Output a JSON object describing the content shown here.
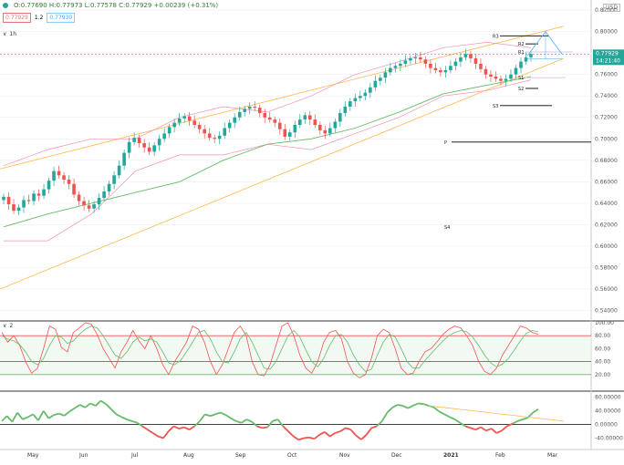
{
  "header": {
    "ohlc": "O:0.77690  H:0.77973  L:0.77578  C:0.77929  +0.00239 (+0.31%)",
    "price_box_red": "0.77929",
    "price_box_mid": "1.2",
    "price_box_blue": "0.77930",
    "interval": "1h",
    "currency": "USD",
    "osc_label": "2",
    "price_tag": "0.77929",
    "time_tag": "14:21:40"
  },
  "colors": {
    "up": "#26a69a",
    "down": "#ef5350",
    "channel": "#ffb74d",
    "bollinger": "#f48fb1",
    "ma": "#66bb6a",
    "pivot": "#000000",
    "pivot_hl": "#e1bee7",
    "stoch_k": "#ef5350",
    "stoch_d": "#66bb6a",
    "macd_up": "#66bb6a",
    "macd_down": "#ef5350",
    "projection": "#64b5f6"
  },
  "chart_data": [
    {
      "type": "line",
      "title": "",
      "subtype": "candlestick",
      "series": [
        {
          "name": "close",
          "values": [
            0.646,
            0.639,
            0.633,
            0.636,
            0.643,
            0.642,
            0.649,
            0.647,
            0.653,
            0.661,
            0.67,
            0.666,
            0.662,
            0.658,
            0.648,
            0.642,
            0.638,
            0.635,
            0.639,
            0.645,
            0.651,
            0.658,
            0.666,
            0.675,
            0.687,
            0.697,
            0.701,
            0.696,
            0.692,
            0.688,
            0.694,
            0.7,
            0.705,
            0.711,
            0.715,
            0.719,
            0.721,
            0.717,
            0.713,
            0.709,
            0.705,
            0.701,
            0.7,
            0.703,
            0.71,
            0.715,
            0.72,
            0.725,
            0.728,
            0.73,
            0.729,
            0.724,
            0.72,
            0.718,
            0.715,
            0.709,
            0.702,
            0.706,
            0.713,
            0.718,
            0.722,
            0.718,
            0.713,
            0.708,
            0.705,
            0.71,
            0.716,
            0.724,
            0.73,
            0.735,
            0.738,
            0.74,
            0.743,
            0.748,
            0.754,
            0.757,
            0.762,
            0.766,
            0.768,
            0.77,
            0.773,
            0.775,
            0.776,
            0.774,
            0.77,
            0.766,
            0.764,
            0.762,
            0.764,
            0.768,
            0.772,
            0.776,
            0.779,
            0.775,
            0.77,
            0.765,
            0.76,
            0.758,
            0.756,
            0.754,
            0.756,
            0.76,
            0.766,
            0.772,
            0.776,
            0.779
          ]
        },
        {
          "name": "bb_upper",
          "values": [
            0.675,
            0.69,
            0.7,
            0.7,
            0.72,
            0.73,
            0.725,
            0.74,
            0.76,
            0.772,
            0.785,
            0.79,
            0.785
          ]
        },
        {
          "name": "bb_lower",
          "values": [
            0.605,
            0.605,
            0.63,
            0.67,
            0.685,
            0.685,
            0.695,
            0.69,
            0.705,
            0.72,
            0.74,
            0.745,
            0.755
          ]
        },
        {
          "name": "ma_slow",
          "values": [
            0.618,
            0.63,
            0.64,
            0.65,
            0.66,
            0.68,
            0.695,
            0.7,
            0.71,
            0.725,
            0.742,
            0.75,
            0.758
          ]
        }
      ],
      "channel": {
        "upper_start": 0.672,
        "upper_end": 0.805,
        "lower_start": 0.56,
        "lower_end": 0.775
      },
      "pivots": [
        {
          "label": "R3",
          "value": 0.796
        },
        {
          "label": "R2",
          "value": 0.7885
        },
        {
          "label": "R1",
          "value": 0.781
        },
        {
          "label": "S1",
          "value": 0.757
        },
        {
          "label": "S2",
          "value": 0.747
        },
        {
          "label": "S3",
          "value": 0.731
        },
        {
          "label": "P",
          "value": 0.697
        },
        {
          "label": "S4",
          "value": 0.618
        }
      ],
      "yticks": [
        "0.82000",
        "0.80000",
        "0.78000",
        "0.76000",
        "0.74000",
        "0.72000",
        "0.70000",
        "0.68000",
        "0.66000",
        "0.64000",
        "0.62000",
        "0.60000",
        "0.58000",
        "0.56000",
        "0.54000"
      ],
      "ylim": [
        0.532,
        0.826
      ],
      "xlabels": [
        "May",
        "Jun",
        "Jul",
        "Aug",
        "Sep",
        "Oct",
        "Nov",
        "Dec",
        "2021",
        "Feb",
        "Mar"
      ]
    },
    {
      "type": "line",
      "title": "",
      "series": [
        {
          "name": "%K",
          "values": [
            85,
            70,
            80,
            65,
            40,
            22,
            30,
            60,
            95,
            90,
            62,
            55,
            85,
            92,
            100,
            98,
            82,
            60,
            45,
            30,
            55,
            70,
            88,
            72,
            60,
            80,
            60,
            35,
            20,
            40,
            55,
            70,
            95,
            90,
            70,
            40,
            20,
            35,
            60,
            85,
            95,
            80,
            40,
            20,
            18,
            35,
            65,
            95,
            100,
            80,
            50,
            30,
            22,
            40,
            70,
            85,
            88,
            75,
            40,
            22,
            15,
            20,
            45,
            80,
            90,
            85,
            60,
            30,
            20,
            22,
            40,
            55,
            60,
            70,
            82,
            90,
            95,
            92,
            80,
            65,
            40,
            25,
            20,
            30,
            50,
            65,
            80,
            95,
            92,
            85,
            82
          ]
        },
        {
          "name": "%D",
          "values": [
            80,
            75,
            72,
            66,
            55,
            40,
            35,
            45,
            65,
            80,
            78,
            68,
            72,
            82,
            90,
            95,
            92,
            80,
            65,
            50,
            45,
            55,
            70,
            78,
            72,
            75,
            70,
            55,
            38,
            35,
            42,
            55,
            70,
            85,
            88,
            75,
            55,
            40,
            38,
            55,
            75,
            85,
            70,
            50,
            30,
            28,
            40,
            60,
            80,
            88,
            78,
            58,
            40,
            32,
            45,
            65,
            80,
            82,
            70,
            50,
            35,
            25,
            28,
            50,
            70,
            82,
            78,
            60,
            40,
            30,
            30,
            42,
            52,
            62,
            72,
            80,
            85,
            88,
            86,
            78,
            65,
            50,
            38,
            32,
            36,
            45,
            58,
            72,
            84,
            88,
            86
          ]
        }
      ],
      "levels": {
        "upper": 80,
        "lower": 20
      },
      "yticks": [
        "100.00",
        "80.00",
        "60.00",
        "40.00",
        "20.00"
      ],
      "ylim": [
        0,
        100
      ]
    },
    {
      "type": "line",
      "title": "",
      "series": [
        {
          "name": "momentum",
          "values": [
            10,
            25,
            8,
            35,
            15,
            22,
            30,
            12,
            40,
            18,
            28,
            32,
            26,
            38,
            48,
            58,
            50,
            62,
            55,
            70,
            60,
            45,
            30,
            22,
            15,
            10,
            5,
            -5,
            -15,
            -25,
            -35,
            -40,
            -20,
            -5,
            -12,
            -8,
            -15,
            -5,
            10,
            30,
            25,
            30,
            35,
            28,
            18,
            10,
            5,
            15,
            8,
            -5,
            -10,
            -8,
            10,
            15,
            -5,
            -20,
            -35,
            -45,
            -40,
            -38,
            -42,
            -30,
            -22,
            -35,
            -25,
            -20,
            -10,
            -15,
            -32,
            -44,
            -30,
            -10,
            -5,
            10,
            35,
            50,
            58,
            55,
            48,
            56,
            62,
            60,
            55,
            50,
            38,
            30,
            22,
            15,
            5,
            -5,
            -10,
            -15,
            -8,
            -18,
            -12,
            -25,
            -18,
            -5,
            2,
            10,
            15,
            20,
            35,
            45
          ]
        }
      ],
      "trendline": {
        "start": 55,
        "end": 10
      },
      "yticks": [
        "80.00000",
        "40.00000",
        "0.00000",
        "-40.00000"
      ],
      "ylim": [
        -60,
        90
      ]
    }
  ]
}
